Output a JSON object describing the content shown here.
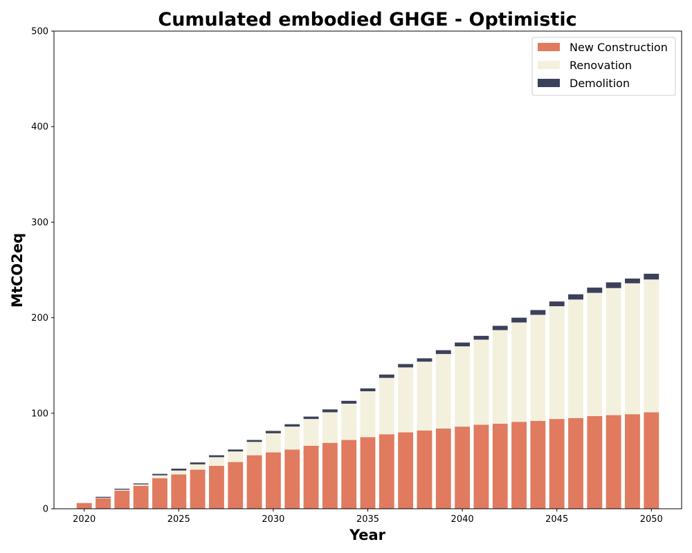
{
  "chart_data": {
    "type": "bar",
    "stacked": true,
    "title": "Cumulated embodied GHGE - Optimistic",
    "xlabel": "Year",
    "ylabel": "MtCO2eq",
    "ylim": [
      0,
      500
    ],
    "yticks": [
      0,
      100,
      200,
      300,
      400,
      500
    ],
    "xticks": [
      2020,
      2025,
      2030,
      2035,
      2040,
      2045,
      2050
    ],
    "legend_position": "top-right",
    "grid": false,
    "x": [
      2020,
      2021,
      2022,
      2023,
      2024,
      2025,
      2026,
      2027,
      2028,
      2029,
      2030,
      2031,
      2032,
      2033,
      2034,
      2035,
      2036,
      2037,
      2038,
      2039,
      2040,
      2041,
      2042,
      2043,
      2044,
      2045,
      2046,
      2047,
      2048,
      2049,
      2050
    ],
    "series": [
      {
        "name": "New Construction",
        "color": "#e07b5f",
        "values": [
          6,
          11,
          19,
          24,
          32,
          36,
          41,
          45,
          49,
          56,
          59,
          62,
          66,
          69,
          72,
          75,
          78,
          80,
          82,
          84,
          86,
          88,
          89,
          91,
          92,
          94,
          95,
          97,
          98,
          99,
          101
        ]
      },
      {
        "name": "Renovation",
        "color": "#f3f0de",
        "values": [
          0,
          0.5,
          1,
          1.5,
          3,
          4,
          5.5,
          9,
          11,
          14,
          20,
          24,
          28,
          32,
          38,
          48,
          59,
          68,
          72,
          78,
          84,
          89,
          98,
          104,
          111,
          118,
          124,
          129,
          133,
          137,
          139
        ]
      },
      {
        "name": "Demolition",
        "color": "#3d405b",
        "values": [
          0,
          1,
          1,
          1,
          1.5,
          2,
          2,
          2,
          2,
          2,
          2.5,
          2.5,
          2.5,
          3,
          3,
          3,
          3.5,
          3.5,
          3.5,
          4,
          4,
          4,
          4.5,
          5,
          5,
          5,
          5.5,
          5.5,
          6,
          5,
          6
        ]
      }
    ]
  }
}
